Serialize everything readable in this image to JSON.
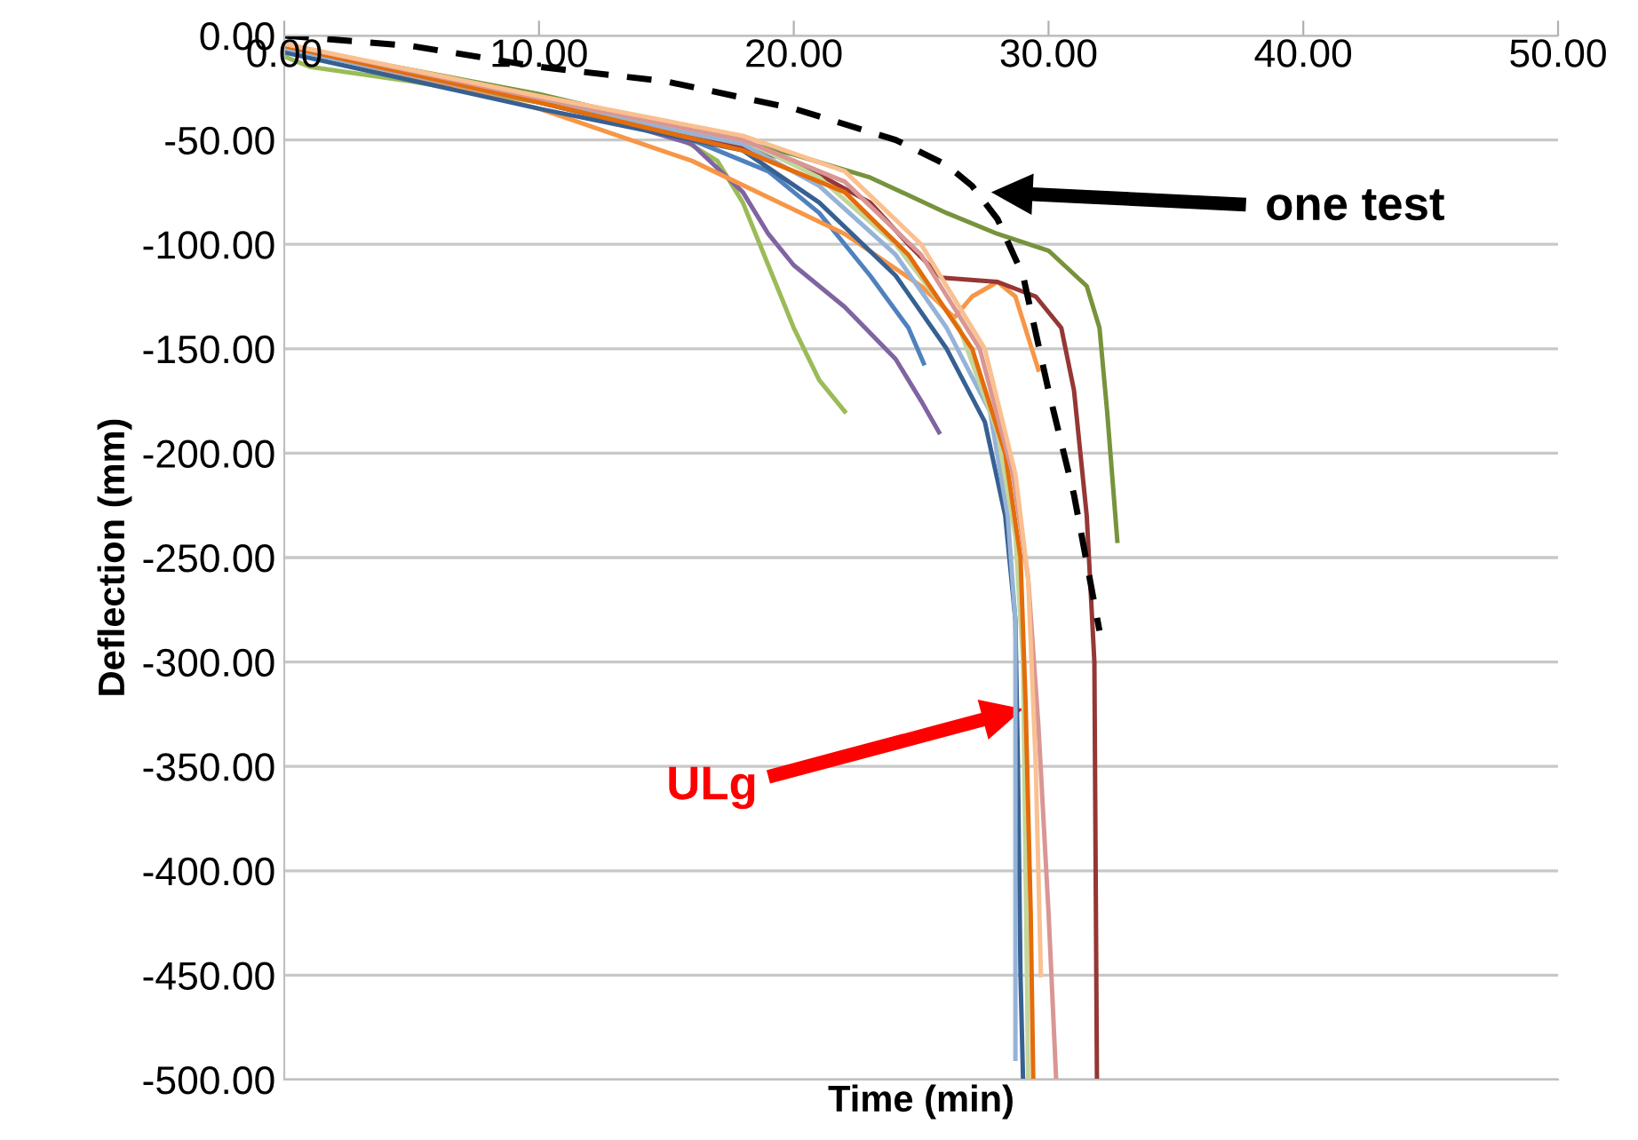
{
  "chart_data": {
    "type": "line",
    "xlabel": "Time (min)",
    "ylabel": "Deflection (mm)",
    "xlim": [
      0,
      50
    ],
    "ylim": [
      -500,
      0
    ],
    "xticks": [
      {
        "value": 0,
        "label": "0.00"
      },
      {
        "value": 10,
        "label": "10.00"
      },
      {
        "value": 20,
        "label": "20.00"
      },
      {
        "value": 30,
        "label": "30.00"
      },
      {
        "value": 40,
        "label": "40.00"
      },
      {
        "value": 50,
        "label": "50.00"
      }
    ],
    "yticks": [
      {
        "value": 0,
        "label": "0.00"
      },
      {
        "value": -50,
        "label": "-50.00"
      },
      {
        "value": -100,
        "label": "-100.00"
      },
      {
        "value": -150,
        "label": "-150.00"
      },
      {
        "value": -200,
        "label": "-200.00"
      },
      {
        "value": -250,
        "label": "-250.00"
      },
      {
        "value": -300,
        "label": "-300.00"
      },
      {
        "value": -350,
        "label": "-350.00"
      },
      {
        "value": -400,
        "label": "-400.00"
      },
      {
        "value": -450,
        "label": "-450.00"
      },
      {
        "value": -500,
        "label": "-500.00"
      }
    ],
    "grid": "y",
    "legend": false,
    "marker": "none",
    "line_style": "solid",
    "series": [
      {
        "color": "#9bbb59",
        "x": [
          0,
          1,
          5,
          10,
          15,
          17,
          18,
          19,
          20,
          21,
          22
        ],
        "values": [
          -10,
          -15,
          -22,
          -32,
          -45,
          -60,
          -80,
          -110,
          -140,
          -165,
          -180
        ]
      },
      {
        "color": "#8064a2",
        "x": [
          0,
          10,
          16,
          18,
          19,
          20,
          22,
          24,
          25,
          25.7
        ],
        "values": [
          -5,
          -30,
          -52,
          -75,
          -95,
          -110,
          -130,
          -155,
          -175,
          -190
        ]
      },
      {
        "color": "#4f81bd",
        "x": [
          0,
          10,
          16,
          19,
          21,
          23,
          24.5,
          25.1
        ],
        "values": [
          -6,
          -32,
          -50,
          -65,
          -85,
          -115,
          -140,
          -157
        ]
      },
      {
        "color": "#f79646",
        "x": [
          0,
          10,
          16,
          22,
          25,
          26.3,
          27,
          28,
          28.7,
          29.6
        ],
        "values": [
          -5,
          -35,
          -60,
          -95,
          -120,
          -135,
          -125,
          -118,
          -125,
          -160
        ]
      },
      {
        "color": "#953735",
        "x": [
          0,
          10,
          20,
          23,
          24.5,
          25.8,
          28,
          29.5,
          30.5,
          31,
          31.5,
          31.8,
          31.9
        ],
        "values": [
          -5,
          -30,
          -60,
          -80,
          -100,
          -116,
          -118,
          -125,
          -140,
          -170,
          -230,
          -300,
          -500
        ]
      },
      {
        "color": "#77933c",
        "x": [
          0,
          10,
          20,
          23,
          26,
          28,
          30,
          31.5,
          32,
          32.3,
          32.7
        ],
        "values": [
          -5,
          -28,
          -57,
          -68,
          -85,
          -95,
          -103,
          -120,
          -140,
          -180,
          -242
        ]
      },
      {
        "color": "#376092",
        "x": [
          0,
          10,
          18,
          21,
          24,
          26,
          27.5,
          28.3,
          28.7,
          28.8,
          28.9,
          29
        ],
        "values": [
          -8,
          -35,
          -55,
          -80,
          -115,
          -150,
          -185,
          -230,
          -280,
          -350,
          -450,
          -500
        ]
      },
      {
        "color": "#95b3d7",
        "x": [
          0,
          10,
          18,
          21,
          24,
          26,
          27.7,
          28.4,
          28.7,
          28.7,
          28.7
        ],
        "values": [
          -6,
          -32,
          -52,
          -72,
          -105,
          -140,
          -180,
          -230,
          -280,
          -380,
          -490
        ]
      },
      {
        "color": "#c3d69b",
        "x": [
          0,
          10,
          18,
          21,
          24,
          26.5,
          28,
          28.7,
          29,
          29.1,
          29.2
        ],
        "values": [
          -5,
          -30,
          -50,
          -68,
          -100,
          -140,
          -190,
          -240,
          -300,
          -400,
          -500
        ]
      },
      {
        "color": "#e46c0a",
        "x": [
          0,
          10,
          18,
          22,
          24.5,
          27,
          28.3,
          28.9,
          29.1,
          29.3,
          29.4
        ],
        "values": [
          -5,
          -32,
          -55,
          -75,
          -105,
          -150,
          -200,
          -250,
          -320,
          -420,
          -500
        ]
      },
      {
        "color": "#d99694",
        "x": [
          0,
          10,
          18,
          22,
          25,
          27.3,
          28.6,
          29.2,
          29.6,
          30,
          30.3
        ],
        "values": [
          -4,
          -30,
          -50,
          -70,
          -105,
          -150,
          -210,
          -260,
          -330,
          -420,
          -500
        ]
      },
      {
        "color": "#fac090",
        "x": [
          0,
          10,
          18,
          22,
          25,
          27.5,
          28.7,
          29.2,
          29.5,
          29.7
        ],
        "values": [
          -4,
          -29,
          -48,
          -65,
          -100,
          -150,
          -210,
          -260,
          -350,
          -450
        ]
      },
      {
        "color": "#000000",
        "line_style": "dashed",
        "x": [
          0,
          5,
          10,
          15,
          20,
          24,
          26,
          27,
          28,
          29,
          30,
          31,
          32
        ],
        "values": [
          0,
          -5,
          -15,
          -22,
          -35,
          -50,
          -62,
          -72,
          -88,
          -115,
          -170,
          -220,
          -285
        ]
      }
    ],
    "annotations": [
      "one test",
      "ULg"
    ]
  }
}
